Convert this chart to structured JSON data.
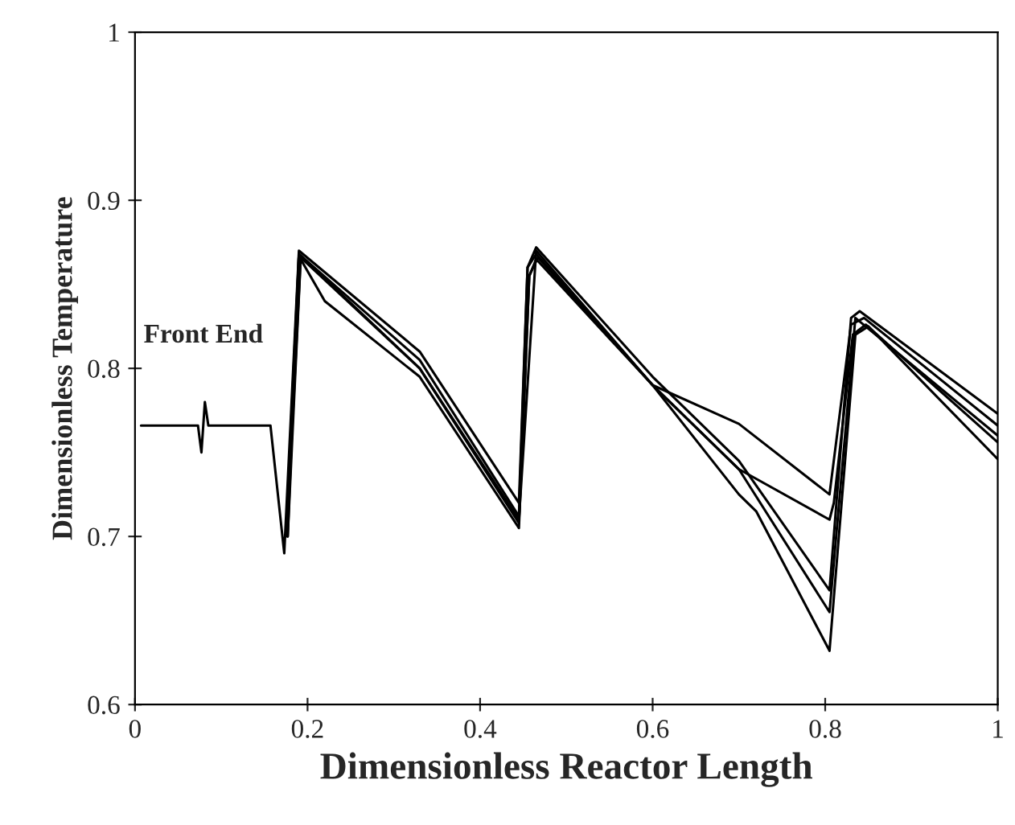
{
  "chart_data": {
    "type": "line",
    "xlabel": "Dimensionless Reactor Length",
    "ylabel": "Dimensionless Temperature",
    "annotations": [
      "Front End"
    ],
    "series": [
      {
        "color": "#000000",
        "x": [
          0.007,
          0.073,
          0.077,
          0.081,
          0.085,
          0.157,
          0.173,
          0.19,
          0.33,
          0.445,
          0.455,
          0.465,
          0.6,
          0.7,
          0.805,
          0.83,
          0.84,
          1.0
        ],
        "values": [
          0.766,
          0.766,
          0.75,
          0.78,
          0.766,
          0.766,
          0.69,
          0.87,
          0.81,
          0.72,
          0.86,
          0.872,
          0.795,
          0.745,
          0.668,
          0.83,
          0.834,
          0.773
        ]
      },
      {
        "color": "#000000",
        "x": [
          0.175,
          0.19,
          0.33,
          0.445,
          0.455,
          0.465,
          0.6,
          0.7,
          0.805,
          0.83,
          0.845,
          1.0
        ],
        "values": [
          0.7,
          0.868,
          0.805,
          0.712,
          0.86,
          0.868,
          0.79,
          0.767,
          0.725,
          0.826,
          0.83,
          0.766
        ]
      },
      {
        "color": "#000000",
        "x": [
          0.177,
          0.192,
          0.33,
          0.445,
          0.457,
          0.467,
          0.6,
          0.7,
          0.805,
          0.81,
          0.832,
          0.847,
          1.0
        ],
        "values": [
          0.71,
          0.866,
          0.8,
          0.708,
          0.855,
          0.866,
          0.79,
          0.74,
          0.71,
          0.72,
          0.82,
          0.826,
          0.756
        ]
      },
      {
        "color": "#000000",
        "x": [
          0.177,
          0.192,
          0.22,
          0.33,
          0.445,
          0.457,
          0.465,
          0.6,
          0.7,
          0.72,
          0.805,
          0.835,
          0.85,
          1.0
        ],
        "values": [
          0.7,
          0.865,
          0.84,
          0.795,
          0.705,
          0.855,
          0.865,
          0.79,
          0.725,
          0.715,
          0.632,
          0.82,
          0.825,
          0.746
        ]
      },
      {
        "color": "#000000",
        "x": [
          0.177,
          0.19,
          0.33,
          0.445,
          0.465,
          0.6,
          0.7,
          0.805,
          0.835,
          1.0
        ],
        "values": [
          0.7,
          0.868,
          0.8,
          0.71,
          0.87,
          0.79,
          0.74,
          0.655,
          0.83,
          0.76
        ]
      }
    ],
    "xlim": [
      0,
      1
    ],
    "ylim": [
      0.6,
      1
    ],
    "xticks": [
      0,
      0.2,
      0.4,
      0.6,
      0.8,
      1
    ],
    "yticks": [
      0.6,
      0.7,
      0.8,
      0.9,
      1
    ],
    "grid": false,
    "marker": "none",
    "line_style": "solid"
  }
}
